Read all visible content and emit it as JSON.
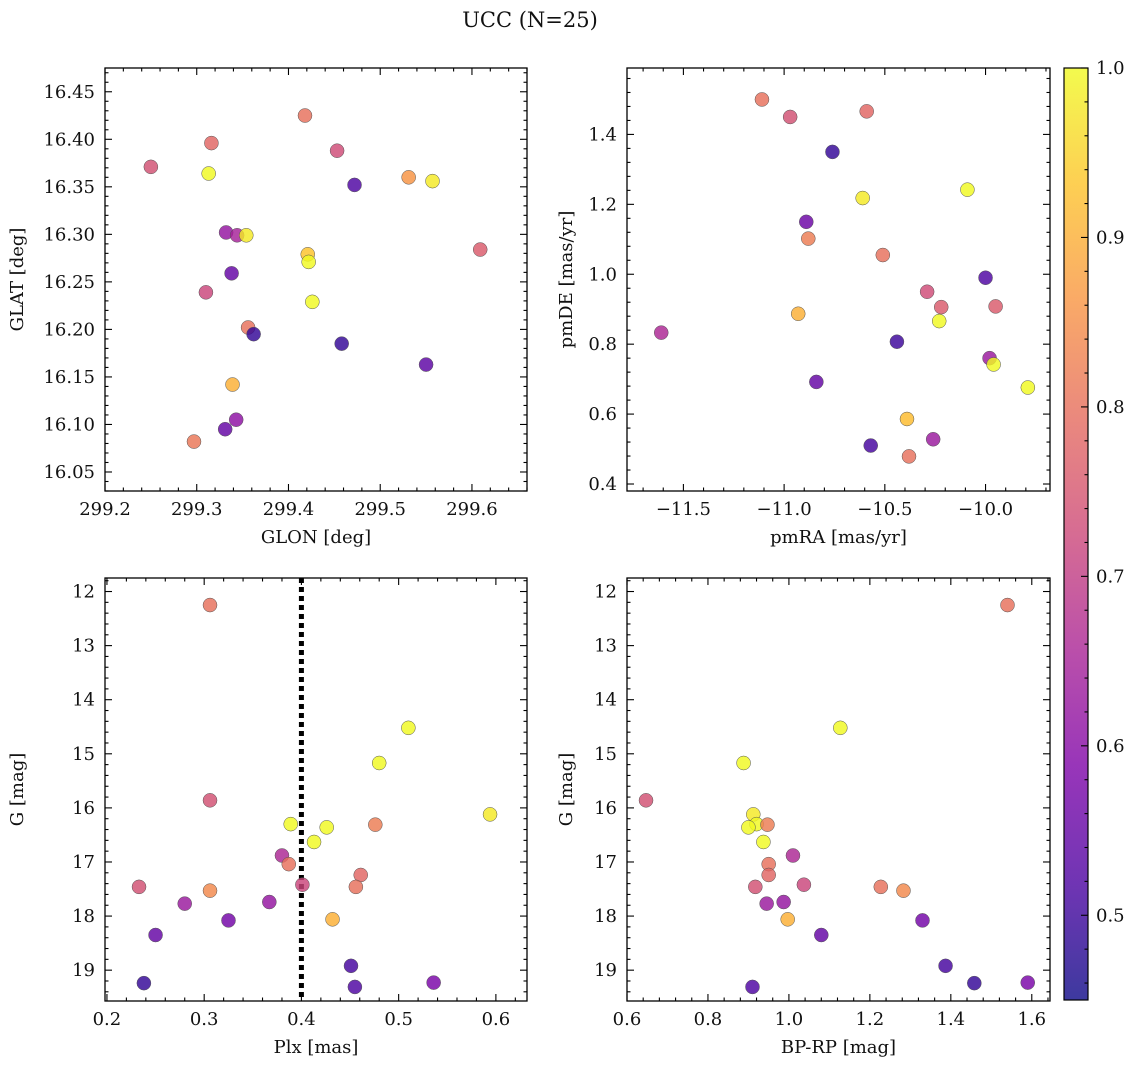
{
  "figure_title": "UCC (N=25)",
  "colorbar": {
    "range": [
      0.45,
      1.0
    ],
    "ticks": [
      "0.5",
      "0.6",
      "0.7",
      "0.8",
      "0.9",
      "1.0"
    ],
    "tick_values": [
      0.5,
      0.6,
      0.7,
      0.8,
      0.9,
      1.0
    ],
    "colormap": "plasma"
  },
  "chart_data": [
    {
      "type": "scatter",
      "xlabel": "GLON [deg]",
      "ylabel": "GLAT [deg]",
      "xlim": [
        299.2,
        299.66
      ],
      "ylim": [
        16.03,
        16.475
      ],
      "y_inverted": false,
      "xticks": [
        "299.2",
        "299.3",
        "299.4",
        "299.5",
        "299.6"
      ],
      "xtick_values": [
        299.2,
        299.3,
        299.4,
        299.5,
        299.6
      ],
      "yticks": [
        "16.05",
        "16.10",
        "16.15",
        "16.20",
        "16.25",
        "16.30",
        "16.35",
        "16.40",
        "16.45"
      ],
      "ytick_values": [
        16.05,
        16.1,
        16.15,
        16.2,
        16.25,
        16.3,
        16.35,
        16.4,
        16.45
      ],
      "points": [
        {
          "x": 299.25,
          "y": 16.371,
          "c": 0.74
        },
        {
          "x": 299.316,
          "y": 16.396,
          "c": 0.78
        },
        {
          "x": 299.313,
          "y": 16.364,
          "c": 1.0
        },
        {
          "x": 299.418,
          "y": 16.425,
          "c": 0.8
        },
        {
          "x": 299.453,
          "y": 16.388,
          "c": 0.73
        },
        {
          "x": 299.472,
          "y": 16.352,
          "c": 0.52
        },
        {
          "x": 299.531,
          "y": 16.36,
          "c": 0.86
        },
        {
          "x": 299.557,
          "y": 16.356,
          "c": 0.98
        },
        {
          "x": 299.332,
          "y": 16.302,
          "c": 0.62
        },
        {
          "x": 299.344,
          "y": 16.299,
          "c": 0.65
        },
        {
          "x": 299.354,
          "y": 16.299,
          "c": 0.98
        },
        {
          "x": 299.421,
          "y": 16.279,
          "c": 0.93
        },
        {
          "x": 299.422,
          "y": 16.271,
          "c": 1.0
        },
        {
          "x": 299.609,
          "y": 16.284,
          "c": 0.76
        },
        {
          "x": 299.338,
          "y": 16.259,
          "c": 0.55
        },
        {
          "x": 299.31,
          "y": 16.239,
          "c": 0.72
        },
        {
          "x": 299.426,
          "y": 16.229,
          "c": 1.0
        },
        {
          "x": 299.356,
          "y": 16.202,
          "c": 0.8
        },
        {
          "x": 299.362,
          "y": 16.195,
          "c": 0.49
        },
        {
          "x": 299.458,
          "y": 16.185,
          "c": 0.49
        },
        {
          "x": 299.55,
          "y": 16.163,
          "c": 0.54
        },
        {
          "x": 299.339,
          "y": 16.142,
          "c": 0.9
        },
        {
          "x": 299.343,
          "y": 16.105,
          "c": 0.61
        },
        {
          "x": 299.331,
          "y": 16.095,
          "c": 0.55
        },
        {
          "x": 299.297,
          "y": 16.082,
          "c": 0.81
        }
      ]
    },
    {
      "type": "scatter",
      "xlabel": "pmRA [mas/yr]",
      "ylabel": "pmDE [mas/yr]",
      "xlim": [
        -11.78,
        -9.68
      ],
      "ylim": [
        0.38,
        1.59
      ],
      "y_inverted": false,
      "xticks": [
        "−11.5",
        "−11.0",
        "−10.5",
        "−10.0"
      ],
      "xtick_values": [
        -11.5,
        -11.0,
        -10.5,
        -10.0
      ],
      "yticks": [
        "0.4",
        "0.6",
        "0.8",
        "1.0",
        "1.2",
        "1.4"
      ],
      "ytick_values": [
        0.4,
        0.6,
        0.8,
        1.0,
        1.2,
        1.4
      ],
      "points": [
        {
          "x": -11.11,
          "y": 1.5,
          "c": 0.8
        },
        {
          "x": -10.97,
          "y": 1.45,
          "c": 0.74
        },
        {
          "x": -10.59,
          "y": 1.466,
          "c": 0.78
        },
        {
          "x": -10.76,
          "y": 1.35,
          "c": 0.49
        },
        {
          "x": -10.09,
          "y": 1.242,
          "c": 1.0
        },
        {
          "x": -10.61,
          "y": 1.218,
          "c": 0.98
        },
        {
          "x": -10.89,
          "y": 1.15,
          "c": 0.56
        },
        {
          "x": -10.88,
          "y": 1.102,
          "c": 0.82
        },
        {
          "x": -10.51,
          "y": 1.055,
          "c": 0.8
        },
        {
          "x": -10.0,
          "y": 0.99,
          "c": 0.52
        },
        {
          "x": -10.29,
          "y": 0.95,
          "c": 0.73
        },
        {
          "x": -10.22,
          "y": 0.906,
          "c": 0.76
        },
        {
          "x": -9.95,
          "y": 0.908,
          "c": 0.76
        },
        {
          "x": -10.93,
          "y": 0.887,
          "c": 0.9
        },
        {
          "x": -10.23,
          "y": 0.866,
          "c": 1.0
        },
        {
          "x": -11.61,
          "y": 0.833,
          "c": 0.66
        },
        {
          "x": -10.44,
          "y": 0.807,
          "c": 0.5
        },
        {
          "x": -9.98,
          "y": 0.76,
          "c": 0.63
        },
        {
          "x": -9.96,
          "y": 0.742,
          "c": 1.0
        },
        {
          "x": -10.84,
          "y": 0.692,
          "c": 0.55
        },
        {
          "x": -9.79,
          "y": 0.676,
          "c": 1.0
        },
        {
          "x": -10.39,
          "y": 0.586,
          "c": 0.92
        },
        {
          "x": -10.26,
          "y": 0.528,
          "c": 0.63
        },
        {
          "x": -10.57,
          "y": 0.51,
          "c": 0.51
        },
        {
          "x": -10.38,
          "y": 0.479,
          "c": 0.8
        }
      ]
    },
    {
      "type": "scatter",
      "xlabel": "Plx [mas]",
      "ylabel": "G [mag]",
      "xlim": [
        0.198,
        0.632
      ],
      "ylim": [
        11.75,
        19.57
      ],
      "y_inverted": true,
      "xticks": [
        "0.2",
        "0.3",
        "0.4",
        "0.5",
        "0.6"
      ],
      "xtick_values": [
        0.2,
        0.3,
        0.4,
        0.5,
        0.6
      ],
      "yticks": [
        "12",
        "13",
        "14",
        "15",
        "16",
        "17",
        "18",
        "19"
      ],
      "ytick_values": [
        12,
        13,
        14,
        15,
        16,
        17,
        18,
        19
      ],
      "vline": {
        "x": 0.4,
        "style": "dotted",
        "color": "#000000"
      },
      "points": [
        {
          "x": 0.306,
          "y": 12.25,
          "c": 0.8
        },
        {
          "x": 0.51,
          "y": 14.52,
          "c": 1.0
        },
        {
          "x": 0.48,
          "y": 15.17,
          "c": 1.0
        },
        {
          "x": 0.306,
          "y": 15.86,
          "c": 0.74
        },
        {
          "x": 0.594,
          "y": 16.12,
          "c": 0.98
        },
        {
          "x": 0.389,
          "y": 16.3,
          "c": 1.0
        },
        {
          "x": 0.476,
          "y": 16.31,
          "c": 0.82
        },
        {
          "x": 0.426,
          "y": 16.36,
          "c": 1.0
        },
        {
          "x": 0.413,
          "y": 16.63,
          "c": 1.0
        },
        {
          "x": 0.38,
          "y": 16.88,
          "c": 0.66
        },
        {
          "x": 0.387,
          "y": 17.04,
          "c": 0.8
        },
        {
          "x": 0.461,
          "y": 17.24,
          "c": 0.78
        },
        {
          "x": 0.401,
          "y": 17.42,
          "c": 0.72
        },
        {
          "x": 0.233,
          "y": 17.46,
          "c": 0.74
        },
        {
          "x": 0.456,
          "y": 17.46,
          "c": 0.8
        },
        {
          "x": 0.306,
          "y": 17.53,
          "c": 0.84
        },
        {
          "x": 0.367,
          "y": 17.74,
          "c": 0.62
        },
        {
          "x": 0.28,
          "y": 17.77,
          "c": 0.63
        },
        {
          "x": 0.432,
          "y": 18.06,
          "c": 0.9
        },
        {
          "x": 0.325,
          "y": 18.08,
          "c": 0.57
        },
        {
          "x": 0.25,
          "y": 18.35,
          "c": 0.55
        },
        {
          "x": 0.451,
          "y": 18.92,
          "c": 0.51
        },
        {
          "x": 0.536,
          "y": 19.23,
          "c": 0.58
        },
        {
          "x": 0.238,
          "y": 19.24,
          "c": 0.49
        },
        {
          "x": 0.455,
          "y": 19.31,
          "c": 0.52
        }
      ]
    },
    {
      "type": "scatter",
      "xlabel": "BP-RP [mag]",
      "ylabel": "G [mag]",
      "xlim": [
        0.6,
        1.645
      ],
      "ylim": [
        11.75,
        19.57
      ],
      "y_inverted": true,
      "xticks": [
        "0.6",
        "0.8",
        "1.0",
        "1.2",
        "1.4",
        "1.6"
      ],
      "xtick_values": [
        0.6,
        0.8,
        1.0,
        1.2,
        1.4,
        1.6
      ],
      "yticks": [
        "12",
        "13",
        "14",
        "15",
        "16",
        "17",
        "18",
        "19"
      ],
      "ytick_values": [
        12,
        13,
        14,
        15,
        16,
        17,
        18,
        19
      ],
      "points": [
        {
          "x": 1.54,
          "y": 12.25,
          "c": 0.8
        },
        {
          "x": 1.127,
          "y": 14.52,
          "c": 1.0
        },
        {
          "x": 0.888,
          "y": 15.17,
          "c": 1.0
        },
        {
          "x": 0.647,
          "y": 15.86,
          "c": 0.74
        },
        {
          "x": 0.912,
          "y": 16.12,
          "c": 0.98
        },
        {
          "x": 0.92,
          "y": 16.3,
          "c": 1.0
        },
        {
          "x": 0.947,
          "y": 16.31,
          "c": 0.82
        },
        {
          "x": 0.9,
          "y": 16.36,
          "c": 1.0
        },
        {
          "x": 0.937,
          "y": 16.63,
          "c": 1.0
        },
        {
          "x": 1.01,
          "y": 16.88,
          "c": 0.66
        },
        {
          "x": 0.95,
          "y": 17.04,
          "c": 0.8
        },
        {
          "x": 0.95,
          "y": 17.24,
          "c": 0.78
        },
        {
          "x": 1.037,
          "y": 17.42,
          "c": 0.72
        },
        {
          "x": 0.917,
          "y": 17.46,
          "c": 0.74
        },
        {
          "x": 1.227,
          "y": 17.46,
          "c": 0.8
        },
        {
          "x": 1.283,
          "y": 17.53,
          "c": 0.84
        },
        {
          "x": 0.987,
          "y": 17.74,
          "c": 0.62
        },
        {
          "x": 0.945,
          "y": 17.77,
          "c": 0.63
        },
        {
          "x": 0.997,
          "y": 18.06,
          "c": 0.9
        },
        {
          "x": 1.33,
          "y": 18.08,
          "c": 0.57
        },
        {
          "x": 1.08,
          "y": 18.35,
          "c": 0.55
        },
        {
          "x": 1.387,
          "y": 18.92,
          "c": 0.51
        },
        {
          "x": 1.59,
          "y": 19.23,
          "c": 0.58
        },
        {
          "x": 1.458,
          "y": 19.24,
          "c": 0.49
        },
        {
          "x": 0.91,
          "y": 19.31,
          "c": 0.52
        }
      ]
    }
  ]
}
